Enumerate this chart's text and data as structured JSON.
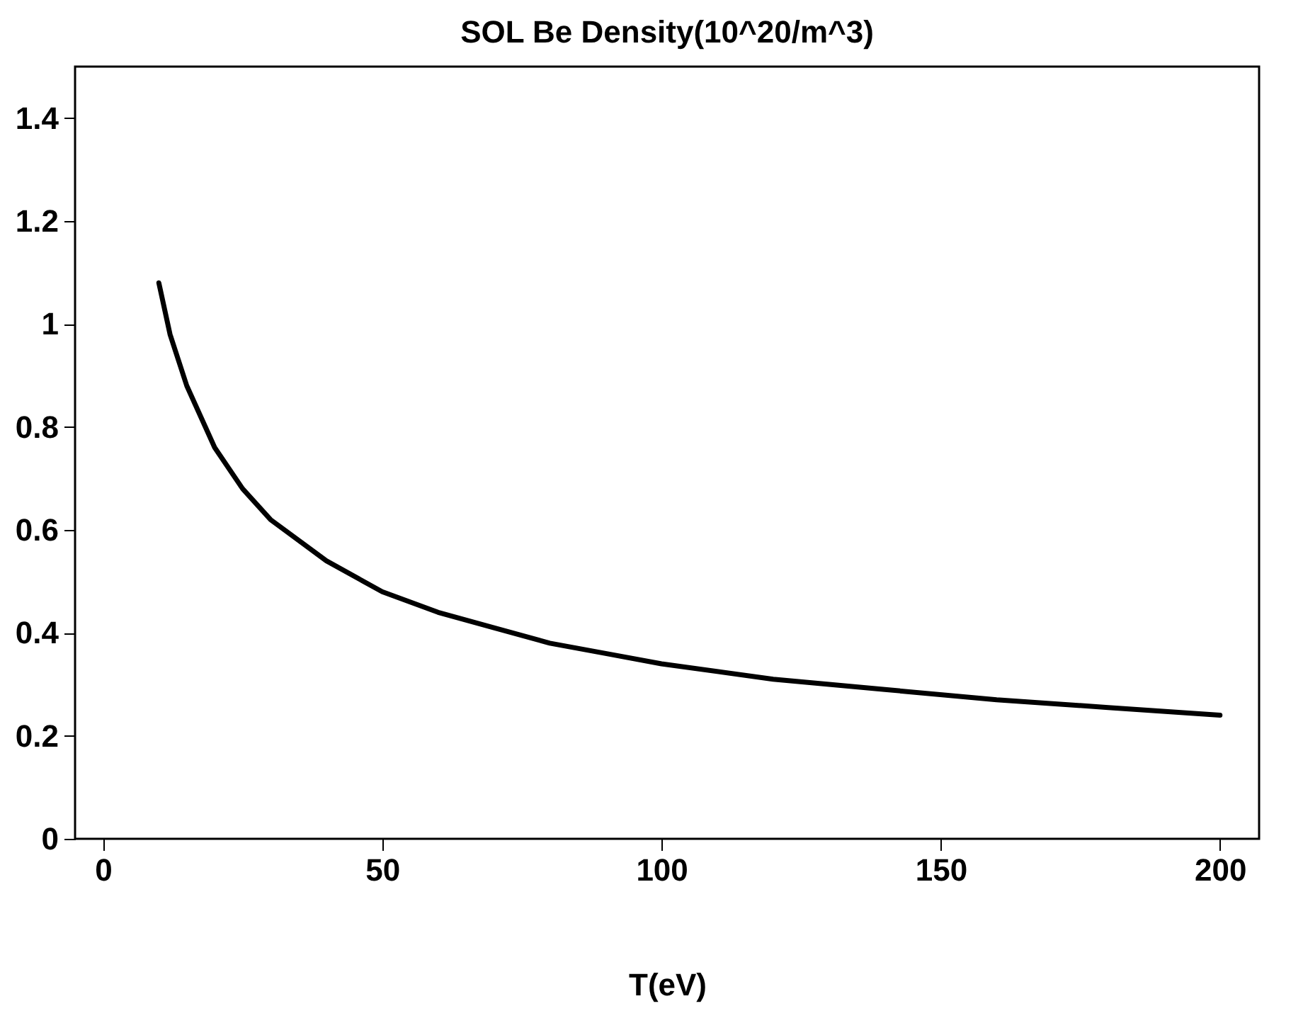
{
  "chart_data": {
    "type": "line",
    "title": "SOL Be Density(10^20/m^3)",
    "xlabel": "T(eV)",
    "x": [
      10,
      12,
      15,
      20,
      25,
      30,
      40,
      50,
      60,
      70,
      80,
      90,
      100,
      120,
      140,
      160,
      180,
      200
    ],
    "series": [
      {
        "color": "#000000",
        "values": [
          1.08,
          0.98,
          0.88,
          0.76,
          0.68,
          0.62,
          0.54,
          0.48,
          0.44,
          0.41,
          0.38,
          0.36,
          0.34,
          0.31,
          0.29,
          0.27,
          0.255,
          0.24
        ]
      }
    ],
    "xlim": [
      -5,
      207
    ],
    "xticks": [
      0,
      50,
      100,
      150,
      200
    ],
    "ylim": [
      0,
      1.5
    ],
    "yticks": [
      0,
      0.2,
      0.4,
      0.6,
      0.8,
      1,
      1.2,
      1.4
    ],
    "grid": false,
    "marker": "none",
    "line_style": "solid"
  }
}
